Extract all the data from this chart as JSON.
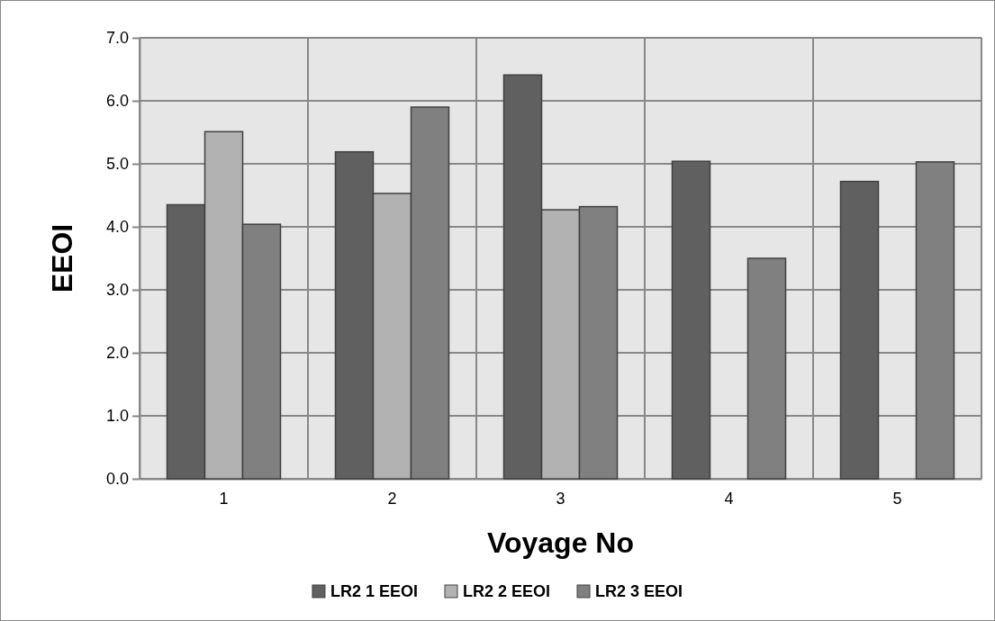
{
  "chart_data": {
    "type": "bar",
    "xlabel": "Voyage No",
    "ylabel": "EEOI",
    "categories": [
      "1",
      "2",
      "3",
      "4",
      "5"
    ],
    "series": [
      {
        "name": "LR2 1 EEOI",
        "color": "#606060",
        "values": [
          4.35,
          5.19,
          6.41,
          5.04,
          4.72
        ]
      },
      {
        "name": "LR2 2 EEOI",
        "color": "#b2b2b2",
        "values": [
          5.51,
          4.53,
          4.27,
          null,
          null
        ]
      },
      {
        "name": "LR2 3 EEOI",
        "color": "#808080",
        "values": [
          4.04,
          5.9,
          4.32,
          3.5,
          5.03
        ]
      }
    ],
    "ylim": [
      0,
      7
    ],
    "yticks": [
      {
        "value": 0,
        "label": "0.0"
      },
      {
        "value": 1,
        "label": "1.0"
      },
      {
        "value": 2,
        "label": "2.0"
      },
      {
        "value": 3,
        "label": "3.0"
      },
      {
        "value": 4,
        "label": "4.0"
      },
      {
        "value": 5,
        "label": "5.0"
      },
      {
        "value": 6,
        "label": "6.0"
      },
      {
        "value": 7,
        "label": "7.0"
      }
    ],
    "grid": true,
    "legend": "bottom"
  }
}
